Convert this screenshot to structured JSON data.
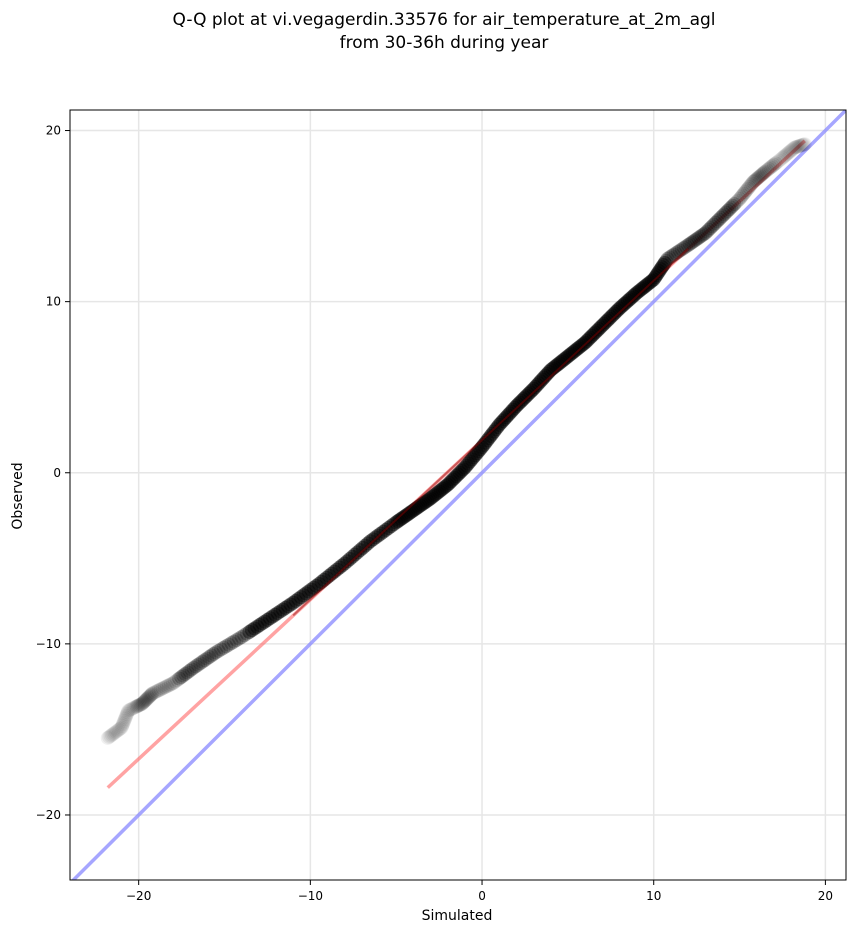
{
  "chart_data": {
    "type": "scatter",
    "title": "Q-Q plot at vi.vegagerdin.33576 for air_temperature_at_2m_agl",
    "subtitle": "from 30-36h during year",
    "xlabel": "Simulated",
    "ylabel": "Observed",
    "xlim": [
      -24,
      21.2
    ],
    "ylim": [
      -23.8,
      21.2
    ],
    "x_ticks": [
      -20,
      -10,
      0,
      10,
      20
    ],
    "y_ticks": [
      -20,
      -10,
      0,
      10,
      20
    ],
    "x_tick_labels": [
      "−20",
      "−10",
      "0",
      "10",
      "20"
    ],
    "y_tick_labels": [
      "−20",
      "−10",
      "0",
      "10",
      "20"
    ],
    "grid": true,
    "colors": {
      "points": "#000000",
      "fit_line": "#ff6666",
      "fit_line_dark": "#8b0000",
      "identity_line": "#8888ff",
      "grid": "#e6e6e6"
    },
    "quantile_curve": [
      [
        -21.8,
        -15.5
      ],
      [
        -21.0,
        -14.9
      ],
      [
        -20.6,
        -13.9
      ],
      [
        -19.8,
        -13.5
      ],
      [
        -19.2,
        -12.9
      ],
      [
        -18.0,
        -12.3
      ],
      [
        -16.8,
        -11.4
      ],
      [
        -15.5,
        -10.5
      ],
      [
        -14.0,
        -9.6
      ],
      [
        -12.5,
        -8.6
      ],
      [
        -11.0,
        -7.6
      ],
      [
        -9.5,
        -6.5
      ],
      [
        -8.0,
        -5.3
      ],
      [
        -6.5,
        -4.0
      ],
      [
        -5.0,
        -2.9
      ],
      [
        -4.0,
        -2.2
      ],
      [
        -3.0,
        -1.5
      ],
      [
        -2.0,
        -0.7
      ],
      [
        -1.0,
        0.3
      ],
      [
        0.0,
        1.5
      ],
      [
        1.0,
        2.8
      ],
      [
        2.0,
        3.9
      ],
      [
        3.0,
        4.9
      ],
      [
        4.0,
        6.0
      ],
      [
        5.0,
        6.8
      ],
      [
        6.0,
        7.6
      ],
      [
        7.0,
        8.6
      ],
      [
        8.0,
        9.6
      ],
      [
        9.0,
        10.5
      ],
      [
        10.0,
        11.3
      ],
      [
        10.8,
        12.5
      ],
      [
        12.0,
        13.3
      ],
      [
        13.0,
        14.0
      ],
      [
        14.0,
        15.0
      ],
      [
        15.0,
        16.0
      ],
      [
        15.8,
        17.0
      ],
      [
        16.5,
        17.6
      ],
      [
        17.5,
        18.4
      ],
      [
        18.2,
        19.0
      ],
      [
        18.8,
        19.2
      ]
    ],
    "fit_line": [
      [
        -21.8,
        -18.4
      ],
      [
        18.8,
        19.4
      ]
    ],
    "identity_line": [
      [
        -24,
        -24
      ],
      [
        21.2,
        21.2
      ]
    ]
  }
}
